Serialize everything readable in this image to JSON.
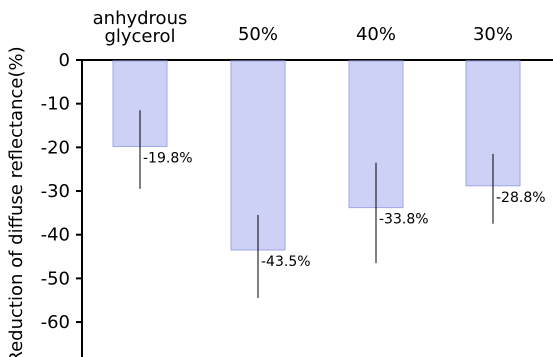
{
  "chart_data": {
    "type": "bar",
    "categories": [
      "anhydrous glycerol",
      "50%",
      "40%",
      "30%"
    ],
    "category_label_lines": [
      [
        "anhydrous",
        "glycerol"
      ],
      [
        "50%"
      ],
      [
        "40%"
      ],
      [
        "30%"
      ]
    ],
    "values": [
      -19.8,
      -43.5,
      -33.8,
      -28.8
    ],
    "data_labels": [
      "-19.8%",
      "-43.5%",
      "-33.8%",
      "-28.8%"
    ],
    "error_bars": [
      {
        "low": -29.5,
        "high": -11.5
      },
      {
        "low": -54.5,
        "high": -35.5
      },
      {
        "low": -46.5,
        "high": -23.5
      },
      {
        "low": -37.5,
        "high": -21.5
      }
    ],
    "ylabel": "Reduction of diffuse reflectance(%)",
    "xlabel": "",
    "title": "",
    "ylim": [
      -68,
      0
    ],
    "yticks": [
      0,
      -10,
      -20,
      -30,
      -40,
      -50,
      -60
    ],
    "ytick_labels": [
      "0",
      "-10",
      "-20",
      "-30",
      "-40",
      "-50",
      "-60"
    ],
    "x_axis_position": "top",
    "grid": false,
    "legend": "none",
    "colors": {
      "bar_fill": "#cdd1f6",
      "bar_stroke": "#9fa6e8",
      "axis": "#000000",
      "error_bar": "#000000"
    }
  }
}
